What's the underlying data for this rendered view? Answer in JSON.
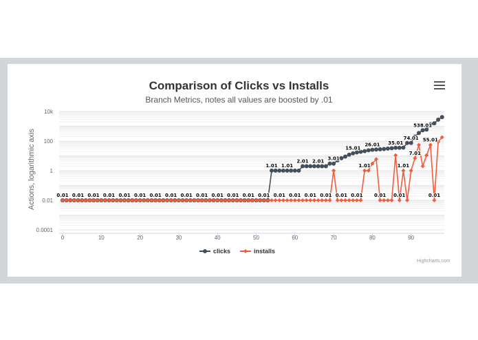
{
  "chart_data": {
    "type": "line",
    "title": "Comparison of Clicks vs Installs",
    "subtitle": "Branch Metrics, notes all values are boosted by .01",
    "xlabel": "",
    "ylabel": "Actions, logarithmic axis",
    "yscale": "log",
    "ylim": [
      0.0001,
      10000
    ],
    "xlim": [
      0,
      98
    ],
    "x_ticks": [
      "0",
      "10",
      "20",
      "30",
      "40",
      "50",
      "60",
      "70",
      "80",
      "90"
    ],
    "y_ticks": [
      "0.0001",
      "0.01",
      "1",
      "100",
      "10k"
    ],
    "legend": [
      "clicks",
      "installs"
    ],
    "legend_position": "bottom",
    "grid": true,
    "x": [
      0,
      1,
      2,
      3,
      4,
      5,
      6,
      7,
      8,
      9,
      10,
      11,
      12,
      13,
      14,
      15,
      16,
      17,
      18,
      19,
      20,
      21,
      22,
      23,
      24,
      25,
      26,
      27,
      28,
      29,
      30,
      31,
      32,
      33,
      34,
      35,
      36,
      37,
      38,
      39,
      40,
      41,
      42,
      43,
      44,
      45,
      46,
      47,
      48,
      49,
      50,
      51,
      52,
      53,
      54,
      55,
      56,
      57,
      58,
      59,
      60,
      61,
      62,
      63,
      64,
      65,
      66,
      67,
      68,
      69,
      70,
      71,
      72,
      73,
      74,
      75,
      76,
      77,
      78,
      79,
      80,
      81,
      82,
      83,
      84,
      85,
      86,
      87,
      88,
      89,
      90,
      91,
      92,
      93,
      94,
      95,
      96,
      97,
      98
    ],
    "series": [
      {
        "name": "clicks",
        "color": "#434f5c",
        "values": [
          0.01,
          0.01,
          0.01,
          0.01,
          0.01,
          0.01,
          0.01,
          0.01,
          0.01,
          0.01,
          0.01,
          0.01,
          0.01,
          0.01,
          0.01,
          0.01,
          0.01,
          0.01,
          0.01,
          0.01,
          0.01,
          0.01,
          0.01,
          0.01,
          0.01,
          0.01,
          0.01,
          0.01,
          0.01,
          0.01,
          0.01,
          0.01,
          0.01,
          0.01,
          0.01,
          0.01,
          0.01,
          0.01,
          0.01,
          0.01,
          0.01,
          0.01,
          0.01,
          0.01,
          0.01,
          0.01,
          0.01,
          0.01,
          0.01,
          0.01,
          0.01,
          0.01,
          0.01,
          0.01,
          1.01,
          1.01,
          1.01,
          1.01,
          1.01,
          1.01,
          1.01,
          1.01,
          2.01,
          2.01,
          2.01,
          2.01,
          2.01,
          2.01,
          2.01,
          3.01,
          3.01,
          5.01,
          7.01,
          9.01,
          12.01,
          15.01,
          17.01,
          19.01,
          21.01,
          24.01,
          26.01,
          27.01,
          28.01,
          29.01,
          31.01,
          33.01,
          35.01,
          35.01,
          36.01,
          74.01,
          74.01,
          200.01,
          350.01,
          538.01,
          600.01,
          1400.01,
          1600.01,
          2800.01,
          4200.01
        ],
        "labels": {
          "0": "0.01",
          "4": "0.01",
          "8": "0.01",
          "12": "0.01",
          "16": "0.01",
          "20": "0.01",
          "24": "0.01",
          "28": "0.01",
          "32": "0.01",
          "36": "0.01",
          "40": "0.01",
          "44": "0.01",
          "48": "0.01",
          "52": "0.01",
          "54": "1.01",
          "58": "1.01",
          "62": "2.01",
          "66": "2.01",
          "70": "3.01",
          "75": "15.01",
          "80": "26.01",
          "86": "35.01",
          "90": "74.01",
          "93": "538.01"
        }
      },
      {
        "name": "installs",
        "color": "#f15c3c",
        "values": [
          0.01,
          0.01,
          0.01,
          0.01,
          0.01,
          0.01,
          0.01,
          0.01,
          0.01,
          0.01,
          0.01,
          0.01,
          0.01,
          0.01,
          0.01,
          0.01,
          0.01,
          0.01,
          0.01,
          0.01,
          0.01,
          0.01,
          0.01,
          0.01,
          0.01,
          0.01,
          0.01,
          0.01,
          0.01,
          0.01,
          0.01,
          0.01,
          0.01,
          0.01,
          0.01,
          0.01,
          0.01,
          0.01,
          0.01,
          0.01,
          0.01,
          0.01,
          0.01,
          0.01,
          0.01,
          0.01,
          0.01,
          0.01,
          0.01,
          0.01,
          0.01,
          0.01,
          0.01,
          0.01,
          0.01,
          0.01,
          0.01,
          0.01,
          0.01,
          0.01,
          0.01,
          0.01,
          0.01,
          0.01,
          0.01,
          0.01,
          0.01,
          0.01,
          0.01,
          0.01,
          1.01,
          0.01,
          0.01,
          0.01,
          0.01,
          0.01,
          0.01,
          0.01,
          1.01,
          1.01,
          3.01,
          6.01,
          0.01,
          0.01,
          0.01,
          0.01,
          11.01,
          0.01,
          1.01,
          0.01,
          1.01,
          7.01,
          55.01,
          2.01,
          11.01,
          55.01,
          0.01,
          90.01,
          180.01
        ],
        "labels": {
          "56": "0.01",
          "60": "0.01",
          "64": "0.01",
          "68": "0.01",
          "72": "0.01",
          "76": "0.01",
          "78": "1.01",
          "82": "0.01",
          "87": "0.01",
          "88": "1.01",
          "91": "7.01",
          "95": "55.01",
          "96": "0.01"
        }
      }
    ]
  },
  "header": {
    "title": "Comparison of Clicks vs Installs",
    "subtitle": "Branch Metrics, notes all values are boosted by .01",
    "menu_icon": "hamburger-menu-icon"
  },
  "axes": {
    "ylabel": "Actions, logarithmic axis"
  },
  "legend": {
    "items": [
      {
        "label": "clicks",
        "color": "#434f5c"
      },
      {
        "label": "installs",
        "color": "#f15c3c"
      }
    ]
  },
  "credits": "Highcharts.com"
}
